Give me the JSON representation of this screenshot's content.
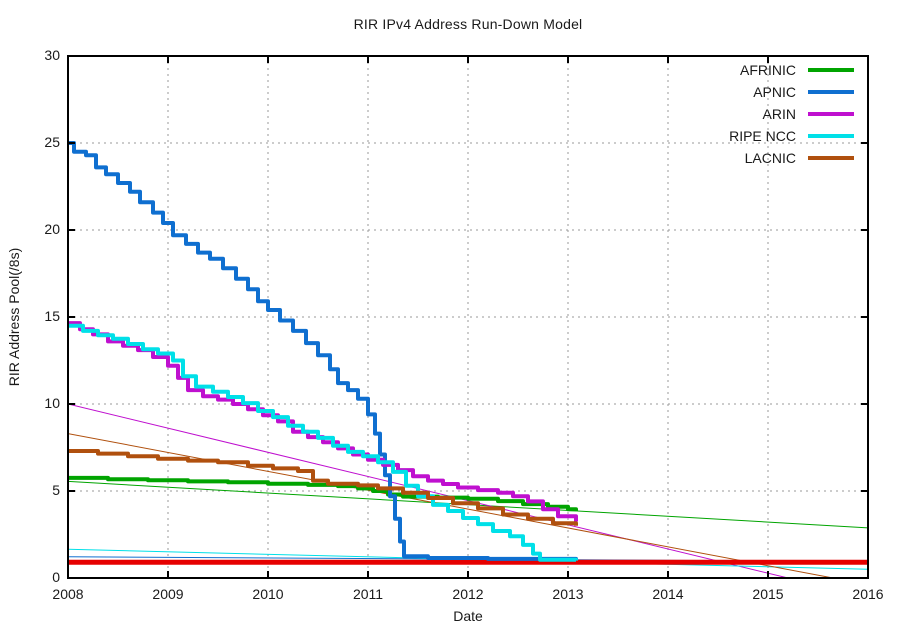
{
  "title": "RIR IPv4 Address Run-Down Model",
  "x_axis": {
    "label": "Date",
    "min": 2008,
    "max": 2016,
    "ticks": [
      2008,
      2009,
      2010,
      2011,
      2012,
      2013,
      2014,
      2015,
      2016
    ]
  },
  "y_axis": {
    "label": "RIR Address Pool(/8s)",
    "min": 0,
    "max": 30,
    "ticks": [
      0,
      5,
      10,
      15,
      20,
      25,
      30
    ]
  },
  "legend": {
    "position": "top-right",
    "entries": [
      {
        "label": "AFRINIC",
        "color": "#00a400"
      },
      {
        "label": "APNIC",
        "color": "#0f6fd0"
      },
      {
        "label": "ARIN",
        "color": "#bf10cf"
      },
      {
        "label": "RIPE NCC",
        "color": "#00e0e8"
      },
      {
        "label": "LACNIC",
        "color": "#b0500e"
      }
    ]
  },
  "chart_data": {
    "type": "line",
    "title": "RIR IPv4 Address Run-Down Model",
    "xlabel": "Date",
    "ylabel": "RIR Address Pool(/8s)",
    "xlim": [
      2008,
      2016
    ],
    "ylim": [
      0,
      30
    ],
    "grid": true,
    "legend_position": "top-right",
    "series": [
      {
        "name": "AFRINIC actual pool",
        "legend": "AFRINIC",
        "color": "#00a400",
        "width": 4,
        "step": true,
        "points": [
          [
            2008,
            5.75
          ],
          [
            2008.4,
            5.68
          ],
          [
            2008.8,
            5.62
          ],
          [
            2009.2,
            5.55
          ],
          [
            2009.6,
            5.5
          ],
          [
            2010,
            5.42
          ],
          [
            2010.4,
            5.35
          ],
          [
            2010.7,
            5.28
          ],
          [
            2010.9,
            5.15
          ],
          [
            2011.05,
            5.0
          ],
          [
            2011.2,
            4.8
          ],
          [
            2011.35,
            4.68
          ],
          [
            2011.7,
            4.62
          ],
          [
            2012,
            4.55
          ],
          [
            2012.3,
            4.42
          ],
          [
            2012.55,
            4.25
          ],
          [
            2012.8,
            4.1
          ],
          [
            2013.0,
            3.95
          ],
          [
            2013.08,
            3.88
          ]
        ]
      },
      {
        "name": "APNIC actual pool",
        "legend": "APNIC",
        "color": "#0f6fd0",
        "width": 4,
        "step": true,
        "points": [
          [
            2008,
            25
          ],
          [
            2008.06,
            24.5
          ],
          [
            2008.18,
            24.3
          ],
          [
            2008.28,
            23.6
          ],
          [
            2008.38,
            23.2
          ],
          [
            2008.5,
            22.7
          ],
          [
            2008.62,
            22.2
          ],
          [
            2008.72,
            21.6
          ],
          [
            2008.85,
            21.0
          ],
          [
            2008.95,
            20.4
          ],
          [
            2009.05,
            19.7
          ],
          [
            2009.18,
            19.2
          ],
          [
            2009.3,
            18.7
          ],
          [
            2009.42,
            18.35
          ],
          [
            2009.55,
            17.8
          ],
          [
            2009.68,
            17.2
          ],
          [
            2009.8,
            16.6
          ],
          [
            2009.9,
            15.9
          ],
          [
            2010.0,
            15.4
          ],
          [
            2010.12,
            14.8
          ],
          [
            2010.25,
            14.2
          ],
          [
            2010.38,
            13.5
          ],
          [
            2010.5,
            12.8
          ],
          [
            2010.62,
            12.0
          ],
          [
            2010.7,
            11.2
          ],
          [
            2010.8,
            10.8
          ],
          [
            2010.9,
            10.3
          ],
          [
            2011.0,
            9.4
          ],
          [
            2011.07,
            8.3
          ],
          [
            2011.12,
            7.1
          ],
          [
            2011.17,
            5.9
          ],
          [
            2011.22,
            4.7
          ],
          [
            2011.27,
            3.4
          ],
          [
            2011.32,
            2.1
          ],
          [
            2011.36,
            1.25
          ],
          [
            2011.6,
            1.15
          ],
          [
            2012.2,
            1.1
          ],
          [
            2013.08,
            1.05
          ]
        ]
      },
      {
        "name": "ARIN actual pool",
        "legend": "ARIN",
        "color": "#bf10cf",
        "width": 4,
        "step": true,
        "points": [
          [
            2008,
            14.65
          ],
          [
            2008.12,
            14.3
          ],
          [
            2008.25,
            14.0
          ],
          [
            2008.4,
            13.6
          ],
          [
            2008.55,
            13.35
          ],
          [
            2008.7,
            13.1
          ],
          [
            2008.85,
            12.7
          ],
          [
            2009.0,
            12.2
          ],
          [
            2009.1,
            11.5
          ],
          [
            2009.2,
            10.8
          ],
          [
            2009.35,
            10.45
          ],
          [
            2009.5,
            10.25
          ],
          [
            2009.65,
            10.0
          ],
          [
            2009.8,
            9.7
          ],
          [
            2009.95,
            9.35
          ],
          [
            2010.1,
            9.0
          ],
          [
            2010.25,
            8.4
          ],
          [
            2010.4,
            8.1
          ],
          [
            2010.55,
            7.8
          ],
          [
            2010.7,
            7.45
          ],
          [
            2010.85,
            7.1
          ],
          [
            2011.0,
            6.8
          ],
          [
            2011.15,
            6.5
          ],
          [
            2011.3,
            6.2
          ],
          [
            2011.45,
            5.85
          ],
          [
            2011.6,
            5.6
          ],
          [
            2011.75,
            5.4
          ],
          [
            2011.9,
            5.2
          ],
          [
            2012.1,
            5.05
          ],
          [
            2012.3,
            4.9
          ],
          [
            2012.45,
            4.7
          ],
          [
            2012.6,
            4.4
          ],
          [
            2012.75,
            3.95
          ],
          [
            2012.9,
            3.55
          ],
          [
            2013.08,
            3.25
          ]
        ]
      },
      {
        "name": "RIPE NCC actual pool",
        "legend": "RIPE NCC",
        "color": "#00e0e8",
        "width": 4,
        "step": true,
        "points": [
          [
            2008,
            14.5
          ],
          [
            2008.15,
            14.2
          ],
          [
            2008.3,
            13.95
          ],
          [
            2008.45,
            13.75
          ],
          [
            2008.6,
            13.45
          ],
          [
            2008.75,
            13.15
          ],
          [
            2008.9,
            12.9
          ],
          [
            2009.05,
            12.5
          ],
          [
            2009.15,
            11.6
          ],
          [
            2009.28,
            11.0
          ],
          [
            2009.45,
            10.7
          ],
          [
            2009.6,
            10.4
          ],
          [
            2009.75,
            10.05
          ],
          [
            2009.9,
            9.6
          ],
          [
            2010.05,
            9.25
          ],
          [
            2010.2,
            8.75
          ],
          [
            2010.35,
            8.4
          ],
          [
            2010.5,
            8.05
          ],
          [
            2010.65,
            7.6
          ],
          [
            2010.8,
            7.25
          ],
          [
            2010.95,
            7.0
          ],
          [
            2011.1,
            6.65
          ],
          [
            2011.25,
            6.1
          ],
          [
            2011.38,
            5.3
          ],
          [
            2011.5,
            4.7
          ],
          [
            2011.65,
            4.2
          ],
          [
            2011.8,
            3.85
          ],
          [
            2011.95,
            3.45
          ],
          [
            2012.1,
            3.1
          ],
          [
            2012.25,
            2.7
          ],
          [
            2012.42,
            2.4
          ],
          [
            2012.55,
            1.9
          ],
          [
            2012.65,
            1.4
          ],
          [
            2012.72,
            1.05
          ],
          [
            2013.08,
            1.0
          ]
        ]
      },
      {
        "name": "LACNIC actual pool",
        "legend": "LACNIC",
        "color": "#b0500e",
        "width": 4,
        "step": true,
        "points": [
          [
            2008,
            7.3
          ],
          [
            2008.3,
            7.15
          ],
          [
            2008.6,
            7.0
          ],
          [
            2008.9,
            6.85
          ],
          [
            2009.2,
            6.75
          ],
          [
            2009.5,
            6.65
          ],
          [
            2009.8,
            6.45
          ],
          [
            2010.05,
            6.3
          ],
          [
            2010.3,
            6.15
          ],
          [
            2010.45,
            5.6
          ],
          [
            2010.6,
            5.42
          ],
          [
            2010.9,
            5.32
          ],
          [
            2011.1,
            5.15
          ],
          [
            2011.35,
            4.9
          ],
          [
            2011.6,
            4.6
          ],
          [
            2011.85,
            4.3
          ],
          [
            2012.1,
            4.0
          ],
          [
            2012.35,
            3.65
          ],
          [
            2012.6,
            3.4
          ],
          [
            2012.85,
            3.15
          ],
          [
            2013.08,
            3.0
          ]
        ]
      },
      {
        "name": "AFRINIC model projection",
        "legend": null,
        "color": "#00a400",
        "width": 1,
        "step": false,
        "points": [
          [
            2008,
            5.55
          ],
          [
            2016,
            2.88
          ]
        ]
      },
      {
        "name": "APNIC model projection",
        "legend": null,
        "color": "#0f6fd0",
        "width": 1,
        "step": false,
        "points": [
          [
            2008,
            1.22
          ],
          [
            2016,
            0.95
          ]
        ]
      },
      {
        "name": "ARIN model projection",
        "legend": null,
        "color": "#bf10cf",
        "width": 1,
        "step": false,
        "points": [
          [
            2008,
            10.0
          ],
          [
            2015.2,
            0
          ],
          [
            2016,
            -1.1
          ]
        ]
      },
      {
        "name": "RIPE NCC model projection",
        "legend": null,
        "color": "#00e0e8",
        "width": 1,
        "step": false,
        "points": [
          [
            2008,
            1.65
          ],
          [
            2016,
            0.5
          ]
        ]
      },
      {
        "name": "LACNIC model projection",
        "legend": null,
        "color": "#b0500e",
        "width": 1,
        "step": false,
        "points": [
          [
            2008,
            8.3
          ],
          [
            2015.65,
            0
          ],
          [
            2016,
            -0.4
          ]
        ]
      },
      {
        "name": "unlabeled red reference line",
        "legend": null,
        "color": "#e60000",
        "width": 5,
        "step": false,
        "points": [
          [
            2008,
            0.9
          ],
          [
            2016,
            0.9
          ]
        ]
      }
    ]
  },
  "plot_style": {
    "grid_color": "#9a9a9a",
    "border_color": "#000000",
    "background": "#ffffff",
    "text_color": "#1a1a1a"
  }
}
